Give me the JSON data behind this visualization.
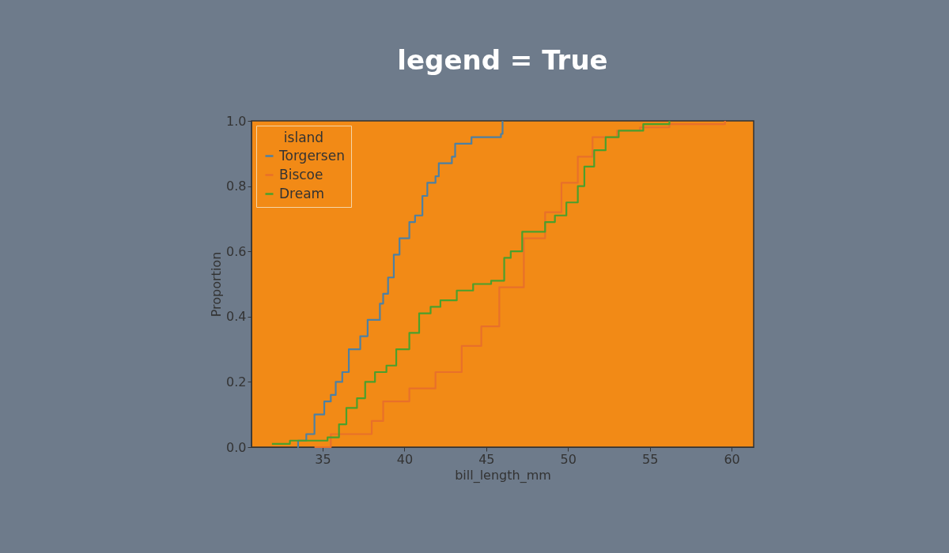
{
  "chart_data": {
    "type": "step",
    "title": "legend = True",
    "xlabel": "bill_length_mm",
    "ylabel": "Proportion",
    "legend_title": "island",
    "legend": "top left",
    "grid": false,
    "marker": "none",
    "xlim": [
      30.65,
      61.35
    ],
    "xticks": [
      35,
      40,
      45,
      50,
      55,
      60
    ],
    "ylim": [
      0,
      1
    ],
    "yticks": [
      {
        "value": 0,
        "label": "0.0"
      },
      0.2,
      0.4,
      0.6,
      0.8,
      {
        "value": 1,
        "label": "1.0"
      }
    ],
    "series": [
      {
        "name": "Torgersen",
        "color": "#4c80a4",
        "x": [
          33.45,
          33.5,
          34.0,
          34.5,
          35.1,
          35.5,
          35.8,
          36.2,
          36.6,
          37.3,
          37.75,
          38.5,
          38.7,
          39.0,
          39.35,
          39.7,
          40.3,
          40.65,
          41.1,
          41.4,
          41.9,
          42.1,
          42.9,
          43.1,
          44.1,
          45.9,
          46.0
        ],
        "values": [
          0.0,
          0.02,
          0.04,
          0.1,
          0.14,
          0.16,
          0.2,
          0.23,
          0.3,
          0.34,
          0.39,
          0.44,
          0.47,
          0.52,
          0.59,
          0.64,
          0.69,
          0.71,
          0.77,
          0.81,
          0.83,
          0.87,
          0.89,
          0.93,
          0.95,
          0.96,
          1.0
        ]
      },
      {
        "name": "Biscoe",
        "color": "#e8702a",
        "x": [
          34.5,
          35.5,
          38.0,
          38.7,
          40.3,
          41.9,
          43.5,
          44.7,
          45.8,
          47.3,
          48.6,
          49.6,
          50.6,
          51.5,
          53.0,
          54.4,
          56.2,
          59.6
        ],
        "values": [
          0.0,
          0.04,
          0.08,
          0.14,
          0.18,
          0.23,
          0.31,
          0.37,
          0.49,
          0.64,
          0.72,
          0.81,
          0.89,
          0.95,
          0.97,
          0.98,
          0.99,
          1.0
        ]
      },
      {
        "name": "Dream",
        "color": "#4aa02c",
        "x": [
          31.9,
          33.0,
          35.3,
          36.0,
          36.45,
          37.1,
          37.6,
          38.2,
          38.9,
          39.5,
          40.3,
          40.9,
          41.6,
          42.2,
          43.2,
          44.2,
          45.3,
          46.1,
          46.5,
          47.2,
          48.6,
          49.2,
          49.9,
          50.6,
          51.0,
          51.6,
          52.3,
          53.1,
          54.6,
          56.2
        ],
        "values": [
          0.01,
          0.02,
          0.03,
          0.07,
          0.12,
          0.15,
          0.2,
          0.23,
          0.25,
          0.3,
          0.35,
          0.41,
          0.43,
          0.45,
          0.48,
          0.5,
          0.51,
          0.58,
          0.6,
          0.66,
          0.69,
          0.71,
          0.75,
          0.8,
          0.86,
          0.91,
          0.95,
          0.97,
          0.99,
          1.0
        ]
      }
    ]
  }
}
